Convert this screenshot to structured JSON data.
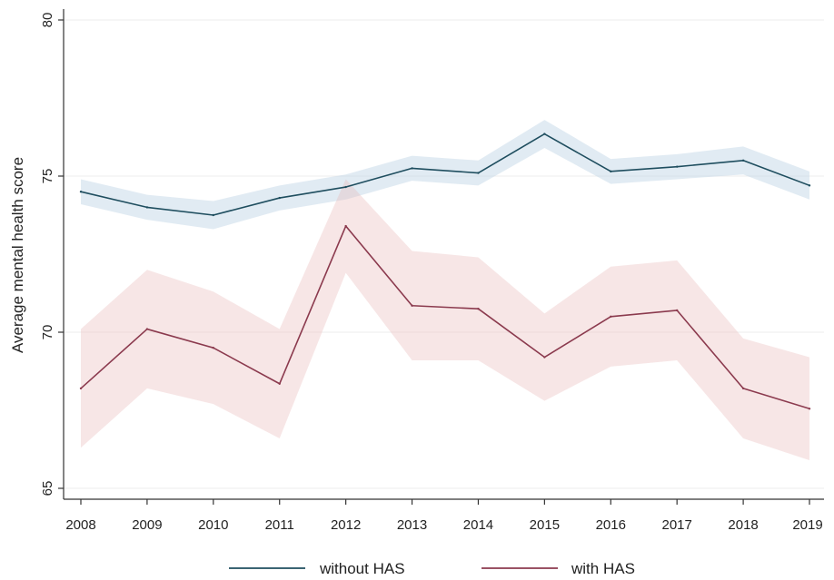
{
  "chart_data": {
    "type": "line",
    "title": "",
    "xlabel": "",
    "ylabel": "Average mental health score",
    "x": [
      2008,
      2009,
      2010,
      2011,
      2012,
      2013,
      2014,
      2015,
      2016,
      2017,
      2018,
      2019
    ],
    "x_tick_labels": [
      "2008",
      "2009",
      "2010",
      "2011",
      "2012",
      "2013",
      "2014",
      "2015",
      "2016",
      "2017",
      "2018",
      "2019"
    ],
    "ylim": [
      65,
      80
    ],
    "y_ticks": [
      65,
      70,
      75,
      80
    ],
    "y_tick_labels": [
      "65",
      "70",
      "75",
      "80"
    ],
    "grid": "horizontal",
    "legend_position": "bottom",
    "series": [
      {
        "name": "without HAS",
        "color": "#1f4e5f",
        "band_color": "#a9c6de",
        "values": [
          74.5,
          74.0,
          73.75,
          74.3,
          74.65,
          75.25,
          75.1,
          76.35,
          75.15,
          75.3,
          75.5,
          74.7
        ],
        "ci_lower": [
          74.1,
          73.6,
          73.3,
          73.9,
          74.25,
          74.85,
          74.7,
          75.9,
          74.75,
          74.9,
          75.05,
          74.25
        ],
        "ci_upper": [
          74.9,
          74.4,
          74.2,
          74.7,
          75.05,
          75.65,
          75.5,
          76.8,
          75.55,
          75.7,
          75.95,
          75.15
        ]
      },
      {
        "name": "with HAS",
        "color": "#8b3a4e",
        "band_color": "#e8b7b7",
        "values": [
          68.2,
          70.1,
          69.5,
          68.35,
          73.4,
          70.85,
          70.75,
          69.2,
          70.5,
          70.7,
          68.2,
          67.55
        ],
        "ci_lower": [
          66.3,
          68.2,
          67.7,
          66.6,
          71.9,
          69.1,
          69.1,
          67.8,
          68.9,
          69.1,
          66.6,
          65.9
        ],
        "ci_upper": [
          70.1,
          72.0,
          71.3,
          70.1,
          74.9,
          72.6,
          72.4,
          70.6,
          72.1,
          72.3,
          69.8,
          69.2
        ]
      }
    ]
  }
}
